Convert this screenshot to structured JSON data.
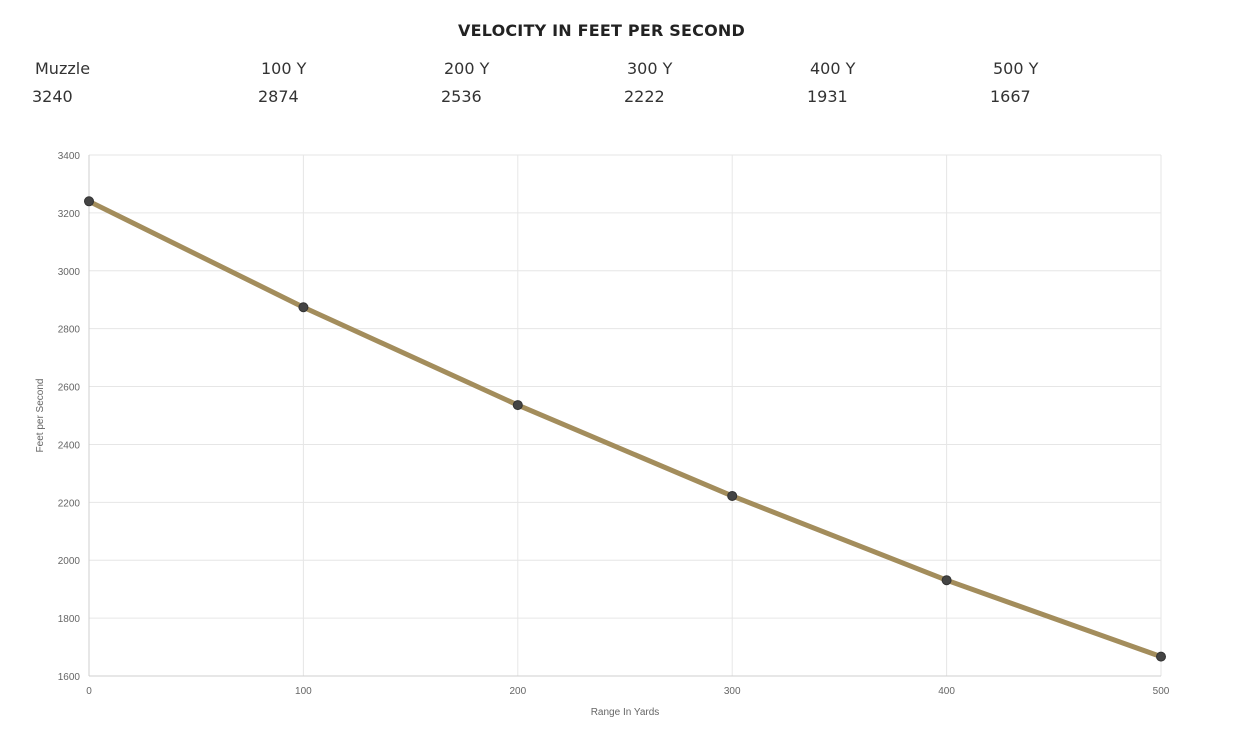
{
  "header": {
    "title": "VELOCITY IN FEET PER SECOND",
    "columns": [
      {
        "label": "Muzzle",
        "value": "3240"
      },
      {
        "label": "100 Y",
        "value": "2874"
      },
      {
        "label": "200 Y",
        "value": "2536"
      },
      {
        "label": "300 Y",
        "value": "2222"
      },
      {
        "label": "400 Y",
        "value": "1931"
      },
      {
        "label": "500 Y",
        "value": "1667"
      }
    ]
  },
  "chart_data": {
    "type": "line",
    "x": [
      0,
      100,
      200,
      300,
      400,
      500
    ],
    "series": [
      {
        "values": [
          3240,
          2874,
          2536,
          2222,
          1931,
          1667
        ],
        "color": "#a38d5c"
      }
    ],
    "xlabel": "Range In Yards",
    "ylabel": "Feet per Second",
    "xlim": [
      0,
      500
    ],
    "ylim": [
      1600,
      3400
    ],
    "xticks": [
      0,
      100,
      200,
      300,
      400,
      500
    ],
    "yticks": [
      1600,
      1800,
      2000,
      2200,
      2400,
      2600,
      2800,
      3000,
      3200,
      3400
    ],
    "grid": true,
    "point_color": "#444444"
  }
}
